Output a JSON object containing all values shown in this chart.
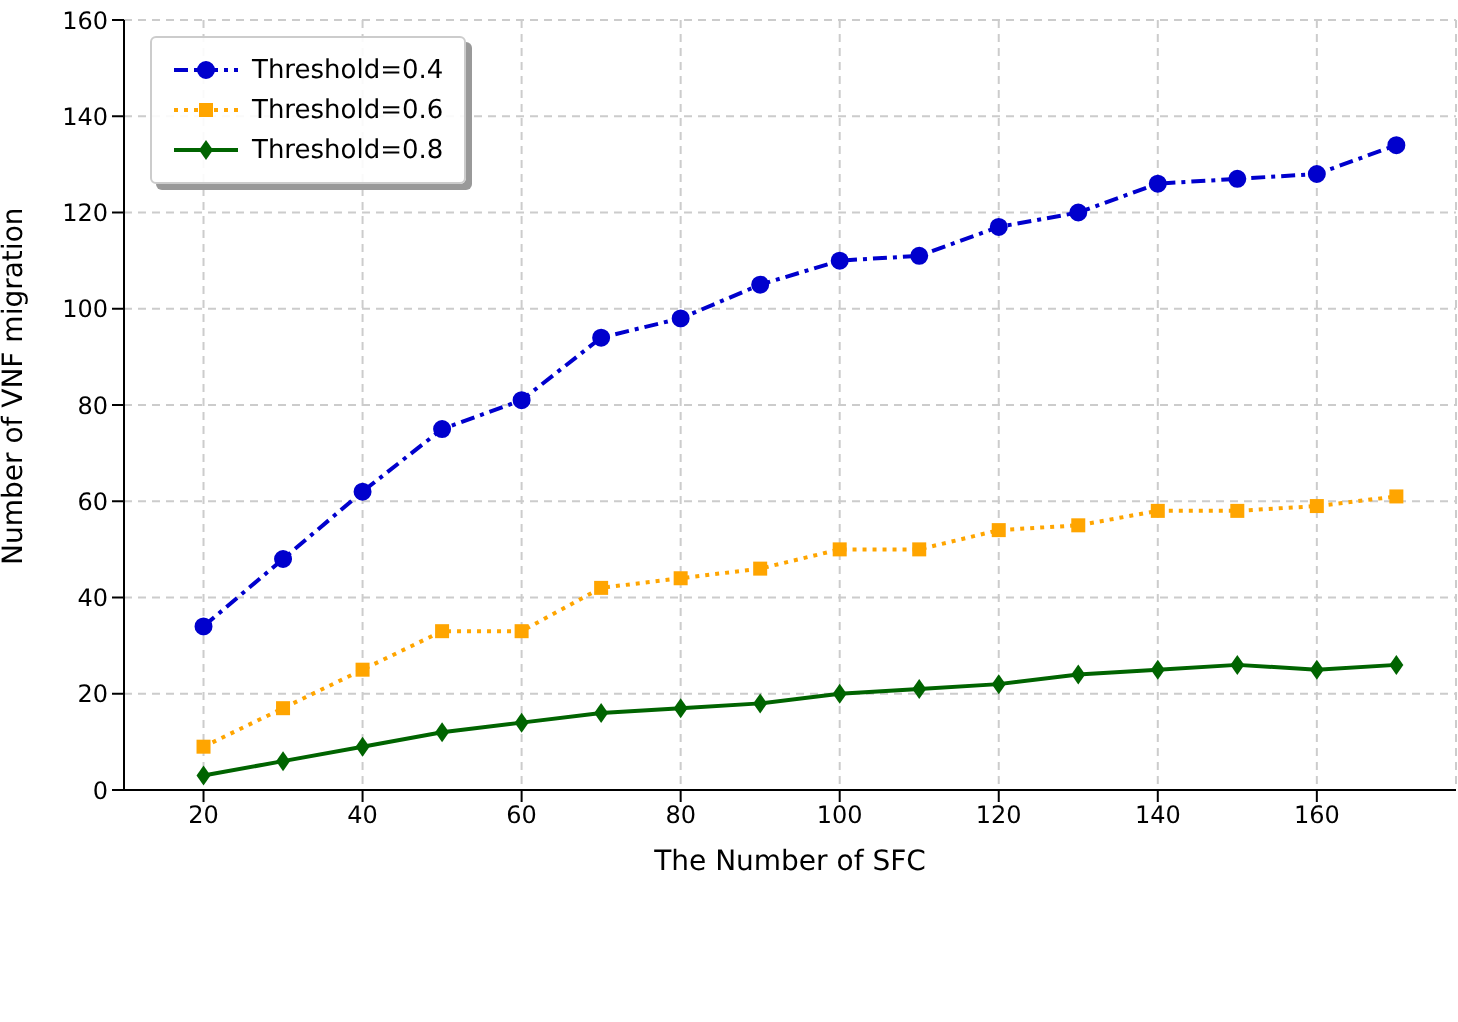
{
  "chart_data": {
    "type": "line",
    "xlabel": "The Number of SFC",
    "ylabel": "Number of VNF migration",
    "x": [
      20,
      30,
      40,
      50,
      60,
      70,
      80,
      90,
      100,
      110,
      120,
      130,
      140,
      150,
      160,
      170
    ],
    "series": [
      {
        "name": "Threshold=0.4",
        "color": "#0000cd",
        "marker": "circle",
        "line_style": "dashed",
        "values": [
          34,
          48,
          62,
          75,
          81,
          94,
          98,
          105,
          110,
          111,
          117,
          120,
          126,
          127,
          128,
          134
        ]
      },
      {
        "name": "Threshold=0.6",
        "color": "#ffa500",
        "marker": "square",
        "line_style": "dotted",
        "values": [
          9,
          17,
          25,
          33,
          33,
          42,
          44,
          46,
          50,
          50,
          54,
          55,
          58,
          58,
          59,
          61
        ]
      },
      {
        "name": "Threshold=0.8",
        "color": "#006400",
        "marker": "diamond",
        "line_style": "solid",
        "values": [
          3,
          6,
          9,
          12,
          14,
          16,
          17,
          18,
          20,
          21,
          22,
          24,
          25,
          26,
          25,
          26
        ]
      }
    ],
    "xlim": [
      10,
      177.5
    ],
    "xticks": [
      20,
      40,
      60,
      80,
      100,
      120,
      140,
      160
    ],
    "ylim": [
      0,
      160
    ],
    "yticks": [
      0,
      20,
      40,
      60,
      80,
      100,
      120,
      140,
      160
    ],
    "grid": true,
    "legend": "top left"
  }
}
